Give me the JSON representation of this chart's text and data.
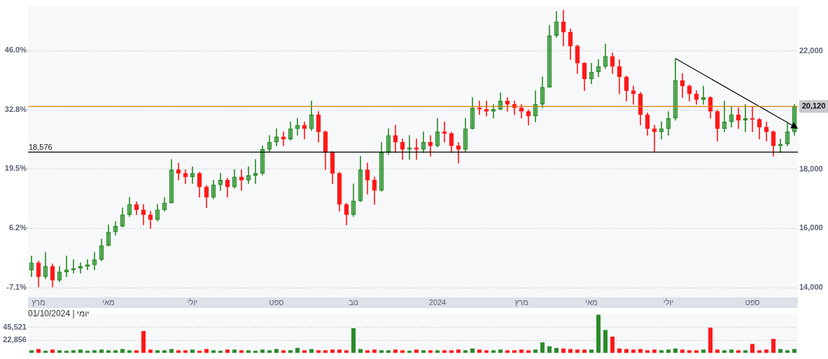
{
  "chart_data": [
    {
      "type": "candlestick",
      "categories": [
        null,
        "מרץ",
        null,
        null,
        null,
        null,
        null,
        null,
        null,
        null,
        null,
        "מאי",
        null,
        null,
        null,
        null,
        null,
        null,
        null,
        null,
        null,
        null,
        null,
        "יולי",
        null,
        null,
        null,
        null,
        null,
        null,
        null,
        null,
        null,
        null,
        null,
        "ספט",
        null,
        null,
        null,
        null,
        null,
        null,
        null,
        null,
        null,
        null,
        "נוב",
        null,
        null,
        null,
        null,
        null,
        null,
        null,
        null,
        null,
        null,
        null,
        "2024",
        null,
        null,
        null,
        null,
        null,
        null,
        null,
        null,
        null,
        null,
        null,
        "מרץ",
        null,
        null,
        null,
        null,
        null,
        null,
        null,
        null,
        null,
        "מאי",
        null,
        null,
        null,
        null,
        null,
        null,
        null,
        null,
        null,
        null,
        "יולי",
        null,
        null,
        null,
        null,
        null,
        null,
        null,
        null,
        null,
        null,
        null,
        "ספט",
        null,
        null,
        null,
        null,
        null,
        null
      ],
      "ohlc": [
        [
          14600,
          15070,
          14370,
          14840
        ],
        [
          14840,
          14900,
          14020,
          14370
        ],
        [
          14370,
          15190,
          14300,
          14720
        ],
        [
          14720,
          14800,
          14020,
          14250
        ],
        [
          14250,
          14720,
          14200,
          14530
        ],
        [
          14530,
          15070,
          14370,
          14600
        ],
        [
          14600,
          14950,
          14490,
          14650
        ],
        [
          14650,
          14840,
          14490,
          14720
        ],
        [
          14720,
          14950,
          14600,
          14770
        ],
        [
          14770,
          15190,
          14600,
          14950
        ],
        [
          14950,
          15650,
          14900,
          15420
        ],
        [
          15420,
          16120,
          15400,
          15880
        ],
        [
          15880,
          16230,
          15770,
          16070
        ],
        [
          16070,
          16700,
          16050,
          16460
        ],
        [
          16460,
          17050,
          16400,
          16810
        ],
        [
          16810,
          16900,
          16460,
          16630
        ],
        [
          16630,
          16810,
          16120,
          16460
        ],
        [
          16460,
          16580,
          16000,
          16300
        ],
        [
          16300,
          16810,
          16250,
          16630
        ],
        [
          16630,
          17050,
          16580,
          16860
        ],
        [
          16860,
          18330,
          16850,
          17980
        ],
        [
          17980,
          18210,
          17630,
          17860
        ],
        [
          17860,
          17980,
          17510,
          17740
        ],
        [
          17740,
          18090,
          17510,
          17860
        ],
        [
          17860,
          17900,
          17050,
          17400
        ],
        [
          17400,
          17450,
          16700,
          17050
        ],
        [
          17050,
          17630,
          17000,
          17470
        ],
        [
          17470,
          17860,
          17280,
          17630
        ],
        [
          17630,
          17700,
          17050,
          17400
        ],
        [
          17400,
          17980,
          17350,
          17740
        ],
        [
          17740,
          17980,
          17280,
          17630
        ],
        [
          17630,
          18090,
          17510,
          17790
        ],
        [
          17790,
          18330,
          17510,
          17860
        ],
        [
          17860,
          18790,
          17800,
          18670
        ],
        [
          18670,
          19140,
          18600,
          18910
        ],
        [
          18910,
          19370,
          18790,
          19090
        ],
        [
          19090,
          19260,
          18790,
          19020
        ],
        [
          19020,
          19600,
          18980,
          19370
        ],
        [
          19370,
          19720,
          19140,
          19490
        ],
        [
          19490,
          19600,
          19020,
          19370
        ],
        [
          19370,
          20300,
          19300,
          19840
        ],
        [
          19840,
          19950,
          18910,
          19260
        ],
        [
          19260,
          19300,
          17980,
          18560
        ],
        [
          18560,
          18600,
          17510,
          17860
        ],
        [
          17860,
          17900,
          16580,
          16810
        ],
        [
          16810,
          16850,
          16120,
          16460
        ],
        [
          16460,
          17510,
          16400,
          16930
        ],
        [
          16930,
          18440,
          16900,
          17980
        ],
        [
          17980,
          18210,
          17160,
          17630
        ],
        [
          17630,
          17740,
          16810,
          17280
        ],
        [
          17280,
          18910,
          17250,
          18560
        ],
        [
          18560,
          19370,
          18500,
          19140
        ],
        [
          19140,
          19490,
          18560,
          18910
        ],
        [
          18910,
          19020,
          18330,
          18670
        ],
        [
          18670,
          19140,
          18330,
          18720
        ],
        [
          18720,
          19020,
          18330,
          18670
        ],
        [
          18670,
          19260,
          18560,
          18910
        ],
        [
          18910,
          19140,
          18440,
          18790
        ],
        [
          18790,
          19720,
          18750,
          19260
        ],
        [
          19260,
          19600,
          18910,
          19210
        ],
        [
          19210,
          19250,
          18560,
          18790
        ],
        [
          18790,
          18910,
          18210,
          18670
        ],
        [
          18670,
          19720,
          18600,
          19370
        ],
        [
          19370,
          20420,
          19350,
          20070
        ],
        [
          20070,
          20300,
          19840,
          20020
        ],
        [
          20020,
          20300,
          19790,
          19950
        ],
        [
          19950,
          20190,
          19720,
          20020
        ],
        [
          20020,
          20580,
          20000,
          20300
        ],
        [
          20300,
          20420,
          19950,
          20190
        ],
        [
          20190,
          20300,
          19840,
          20070
        ],
        [
          20070,
          20190,
          19720,
          19950
        ],
        [
          19950,
          20000,
          19490,
          19790
        ],
        [
          19790,
          20650,
          19600,
          20190
        ],
        [
          20190,
          21120,
          20070,
          20770
        ],
        [
          20770,
          22860,
          20770,
          22510
        ],
        [
          22510,
          23330,
          22450,
          22980
        ],
        [
          22980,
          23370,
          22160,
          22630
        ],
        [
          22630,
          22740,
          21700,
          22160
        ],
        [
          22160,
          22200,
          21230,
          21580
        ],
        [
          21580,
          21600,
          20650,
          21050
        ],
        [
          21050,
          21580,
          20880,
          21280
        ],
        [
          21280,
          21700,
          21120,
          21470
        ],
        [
          21470,
          22230,
          21400,
          21810
        ],
        [
          21810,
          21930,
          21230,
          21470
        ],
        [
          21470,
          21700,
          20540,
          21120
        ],
        [
          21120,
          21150,
          20300,
          20650
        ],
        [
          20650,
          20810,
          20190,
          20540
        ],
        [
          20540,
          20600,
          19490,
          19840
        ],
        [
          19840,
          19900,
          19140,
          19370
        ],
        [
          19370,
          19490,
          18600,
          19260
        ],
        [
          19260,
          19600,
          19020,
          19370
        ],
        [
          19370,
          19950,
          19140,
          19720
        ],
        [
          19720,
          21740,
          19650,
          21000
        ],
        [
          21000,
          21230,
          20420,
          20810
        ],
        [
          20810,
          20850,
          20300,
          20540
        ],
        [
          20540,
          20650,
          20190,
          20350
        ],
        [
          20350,
          20810,
          20190,
          20420
        ],
        [
          20420,
          20450,
          19720,
          19950
        ],
        [
          19950,
          20000,
          18950,
          19370
        ],
        [
          19370,
          20300,
          19260,
          19600
        ],
        [
          19600,
          20120,
          19420,
          19840
        ],
        [
          19840,
          20070,
          19370,
          19650
        ],
        [
          19650,
          20190,
          19260,
          19720
        ],
        [
          19720,
          20120,
          19260,
          19680
        ],
        [
          19680,
          19720,
          19020,
          19420
        ],
        [
          19420,
          19600,
          18950,
          19260
        ],
        [
          19260,
          19300,
          18440,
          18790
        ],
        [
          18790,
          19020,
          18560,
          18850
        ],
        [
          18850,
          19600,
          18790,
          19260
        ],
        [
          19260,
          20190,
          19140,
          20120
        ]
      ],
      "series": [
        {
          "type": "line",
          "color": "#000000",
          "values": [
            null,
            null,
            null,
            null,
            null,
            null,
            null,
            null,
            null,
            null,
            null,
            null,
            null,
            null,
            null,
            null,
            null,
            null,
            null,
            null,
            null,
            null,
            null,
            null,
            null,
            null,
            null,
            null,
            null,
            null,
            null,
            null,
            null,
            null,
            null,
            null,
            null,
            null,
            null,
            null,
            null,
            null,
            null,
            null,
            null,
            null,
            null,
            null,
            null,
            null,
            null,
            null,
            null,
            null,
            null,
            null,
            null,
            null,
            null,
            null,
            null,
            null,
            null,
            null,
            null,
            null,
            null,
            null,
            null,
            null,
            null,
            null,
            null,
            null,
            null,
            null,
            null,
            null,
            null,
            null,
            null,
            null,
            null,
            null,
            null,
            null,
            null,
            null,
            null,
            null,
            null,
            null,
            21740,
            null,
            null,
            null,
            null,
            null,
            null,
            null,
            null,
            null,
            null,
            null,
            null,
            null,
            null,
            null,
            null,
            19440
          ]
        }
      ],
      "ylim": [
        13670,
        23510
      ],
      "yticks": [
        {
          "value": 14000,
          "label": "14,000"
        },
        {
          "value": 16000,
          "label": "16,000"
        },
        {
          "value": 18000,
          "label": "18,000"
        },
        {
          "value": 20000,
          "label": null
        },
        {
          "value": 22000,
          "label": "22,000"
        }
      ],
      "y2lim": [
        -9.3,
        56.0
      ],
      "y2ticks": [
        {
          "value": -7.1,
          "label": "-7.1%"
        },
        {
          "value": 6.2,
          "label": "6.2%"
        },
        {
          "value": 19.5,
          "label": "19.5%"
        },
        {
          "value": 32.8,
          "label": "32.8%"
        },
        {
          "value": 46.0,
          "label": "46.0%"
        }
      ],
      "ref_lines": [
        {
          "axis": "y",
          "value": 20120,
          "label": "20,120",
          "color": "#d97a00"
        },
        {
          "axis": "y",
          "value": 18576,
          "label": "18,576",
          "color": "#000000"
        }
      ],
      "grid": "y"
    },
    {
      "type": "bar",
      "categories": [
        null,
        null,
        null,
        null,
        null,
        null,
        null,
        null,
        null,
        null,
        null,
        null,
        null,
        null,
        null,
        null,
        null,
        null,
        null,
        null,
        null,
        null,
        null,
        null,
        null,
        null,
        null,
        null,
        null,
        null,
        null,
        null,
        null,
        null,
        null,
        null,
        null,
        null,
        null,
        null,
        null,
        null,
        null,
        null,
        null,
        null,
        null,
        null,
        null,
        null,
        null,
        null,
        null,
        null,
        null,
        null,
        null,
        null,
        null,
        null,
        null,
        null,
        null,
        null,
        null,
        null,
        null,
        null,
        null,
        null,
        null,
        null,
        null,
        null,
        null,
        null,
        null,
        null,
        null,
        null,
        null,
        null,
        null,
        null,
        null,
        null,
        null,
        null,
        null,
        null,
        null,
        null,
        null,
        null,
        null,
        null,
        null,
        null,
        null,
        null,
        null,
        null,
        null,
        null,
        null,
        null,
        null,
        null,
        null,
        null
      ],
      "values": [
        5000,
        7000,
        4000,
        6000,
        5000,
        4000,
        5000,
        6000,
        4000,
        5000,
        6000,
        5000,
        5000,
        7000,
        5000,
        5000,
        39000,
        6000,
        5000,
        5000,
        7000,
        5000,
        5000,
        6000,
        4000,
        7000,
        5000,
        4000,
        6000,
        6000,
        5000,
        5000,
        4000,
        6000,
        5000,
        7000,
        5000,
        5000,
        9000,
        5000,
        7000,
        5000,
        5000,
        6000,
        6000,
        5000,
        44000,
        7000,
        5000,
        6000,
        5000,
        5000,
        6000,
        5000,
        4000,
        6000,
        5000,
        5000,
        5000,
        5000,
        5000,
        6000,
        5000,
        8000,
        6000,
        5000,
        5000,
        6000,
        5000,
        5000,
        6000,
        5000,
        6000,
        19000,
        12000,
        9000,
        8000,
        7000,
        6000,
        6000,
        6000,
        68000,
        41000,
        29000,
        8000,
        7000,
        6000,
        7000,
        5000,
        6000,
        5000,
        6000,
        8000,
        6000,
        5000,
        5000,
        6000,
        45000,
        6000,
        5000,
        6000,
        5000,
        5000,
        16000,
        5000,
        6000,
        25000,
        7000,
        5000,
        7000
      ],
      "ylim": [
        0,
        69500
      ],
      "yticks": [
        {
          "value": 22856,
          "label": "22,856"
        },
        {
          "value": 45521,
          "label": "45,521"
        }
      ],
      "grid": "y",
      "tick_labels": "y",
      "annotations": [
        "יומי | 01/10/2024"
      ]
    }
  ]
}
